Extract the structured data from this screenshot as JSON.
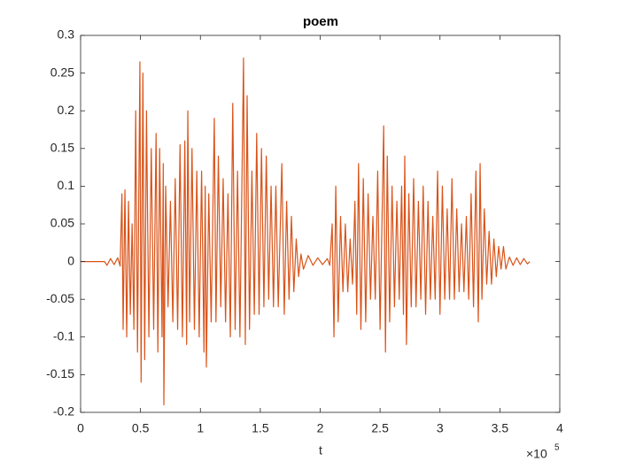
{
  "chart_data": {
    "type": "line",
    "title": "poem",
    "x_label": "t",
    "x_multiplier": {
      "base": "×10",
      "exponent": "5"
    },
    "xlim": [
      0,
      400000
    ],
    "xticks": [
      0,
      {
        "value": 50000,
        "label": "0.5"
      },
      {
        "value": 100000,
        "label": "1"
      },
      {
        "value": 150000,
        "label": "1.5"
      },
      {
        "value": 200000,
        "label": "2"
      },
      {
        "value": 250000,
        "label": "2.5"
      },
      {
        "value": 300000,
        "label": "3"
      },
      {
        "value": 350000,
        "label": "3.5"
      },
      {
        "value": 400000,
        "label": "4"
      }
    ],
    "ylim": [
      -0.2,
      0.3
    ],
    "yticks": [
      -0.2,
      -0.15,
      -0.1,
      -0.05,
      0,
      0.05,
      0.1,
      0.15,
      0.2,
      0.25,
      0.3
    ],
    "grid": false,
    "x": [
      0,
      20000,
      22000,
      25000,
      28000,
      31000,
      33000,
      34500,
      35500,
      37000,
      38500,
      40000,
      41500,
      43000,
      44500,
      46000,
      47500,
      49500,
      50500,
      52000,
      53500,
      55000,
      57000,
      59000,
      61000,
      63000,
      64500,
      66000,
      68000,
      69000,
      69500,
      71000,
      73000,
      75000,
      77000,
      79000,
      81000,
      83000,
      85000,
      87000,
      88500,
      89500,
      91000,
      93000,
      95000,
      97000,
      99000,
      101000,
      103000,
      104000,
      105000,
      107000,
      109000,
      111600,
      113000,
      115000,
      117000,
      119000,
      121000,
      123000,
      125000,
      127000,
      129000,
      131000,
      133000,
      136000,
      137500,
      139000,
      141000,
      143000,
      145000,
      147000,
      149000,
      151000,
      153000,
      155000,
      157000,
      159000,
      161000,
      163000,
      165000,
      168000,
      170000,
      172000,
      174000,
      176000,
      178000,
      180000,
      182000,
      184000,
      186000,
      190000,
      194000,
      198000,
      202000,
      206000,
      208000,
      210000,
      211500,
      213000,
      215000,
      217000,
      219000,
      221000,
      223000,
      225000,
      227000,
      229000,
      230500,
      232000,
      234000,
      236000,
      238000,
      240000,
      242000,
      244000,
      246000,
      248000,
      250000,
      253000,
      254500,
      256000,
      258000,
      260000,
      262000,
      264000,
      266000,
      268000,
      269500,
      270600,
      272000,
      274000,
      276000,
      278000,
      280000,
      282000,
      284000,
      286000,
      288000,
      290000,
      292000,
      294000,
      296000,
      298000,
      300000,
      302000,
      304000,
      306000,
      308000,
      310000,
      312000,
      314000,
      316000,
      318000,
      320000,
      322000,
      324000,
      326000,
      328000,
      330000,
      332000,
      333500,
      335000,
      337000,
      339000,
      341000,
      343000,
      345000,
      347000,
      349000,
      351000,
      353000,
      355000,
      358000,
      361000,
      364000,
      367000,
      370000,
      373000,
      375000
    ],
    "series": [
      {
        "color": "#d95319",
        "values": [
          0,
          0,
          -0.005,
          0.004,
          -0.004,
          0.005,
          -0.006,
          0.09,
          -0.09,
          0.095,
          -0.1,
          0.08,
          -0.07,
          0.05,
          -0.09,
          0.2,
          -0.12,
          0.265,
          -0.16,
          0.25,
          -0.13,
          0.2,
          -0.1,
          0.15,
          -0.09,
          0.17,
          -0.12,
          0.15,
          -0.1,
          0.13,
          -0.19,
          0.1,
          -0.06,
          0.08,
          -0.08,
          0.11,
          -0.09,
          0.155,
          -0.1,
          0.16,
          -0.11,
          0.2,
          -0.08,
          0.15,
          -0.09,
          0.12,
          -0.1,
          0.12,
          -0.12,
          0.1,
          -0.14,
          0.09,
          -0.08,
          0.19,
          -0.08,
          0.14,
          -0.06,
          0.11,
          -0.08,
          0.09,
          -0.1,
          0.21,
          -0.09,
          0.12,
          -0.1,
          0.27,
          -0.11,
          0.22,
          -0.09,
          0.12,
          -0.07,
          0.17,
          -0.07,
          0.15,
          -0.06,
          0.14,
          -0.05,
          0.1,
          -0.06,
          0.1,
          -0.06,
          0.13,
          -0.07,
          0.08,
          -0.05,
          0.06,
          -0.04,
          0.03,
          -0.02,
          0.01,
          -0.01,
          0.008,
          -0.005,
          0.005,
          -0.004,
          0.004,
          -0.005,
          0.05,
          -0.1,
          0.1,
          -0.08,
          0.06,
          -0.04,
          0.05,
          -0.04,
          0.03,
          -0.03,
          0.08,
          -0.07,
          0.13,
          -0.09,
          0.11,
          -0.08,
          0.09,
          -0.05,
          0.06,
          -0.05,
          0.12,
          -0.09,
          0.18,
          -0.12,
          0.14,
          -0.08,
          0.1,
          -0.06,
          0.08,
          -0.05,
          0.1,
          -0.07,
          0.14,
          -0.11,
          0.09,
          -0.06,
          0.11,
          -0.06,
          0.08,
          -0.05,
          0.1,
          -0.07,
          0.08,
          -0.05,
          0.06,
          -0.05,
          0.12,
          -0.07,
          0.1,
          -0.05,
          0.07,
          -0.05,
          0.11,
          -0.05,
          0.07,
          -0.04,
          0.05,
          -0.04,
          0.06,
          -0.05,
          0.09,
          -0.06,
          0.12,
          -0.08,
          0.13,
          -0.05,
          0.07,
          -0.03,
          0.04,
          -0.03,
          0.03,
          -0.02,
          0.02,
          -0.01,
          0.02,
          -0.01,
          0.006,
          -0.005,
          0.005,
          -0.004,
          0.004,
          -0.003,
          0
        ]
      }
    ]
  }
}
